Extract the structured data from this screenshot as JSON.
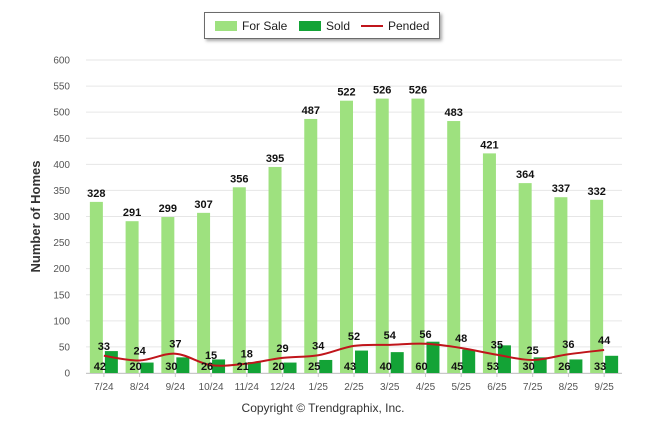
{
  "chart_data": {
    "type": "bar",
    "ylabel": "Number of Homes",
    "ylim": [
      0,
      600
    ],
    "yticks": [
      "0",
      "50",
      "100",
      "150",
      "200",
      "250",
      "300",
      "350",
      "400",
      "450",
      "500",
      "550",
      "600"
    ],
    "categories": [
      "7/24",
      "8/24",
      "9/24",
      "10/24",
      "11/24",
      "12/24",
      "1/25",
      "2/25",
      "3/25",
      "4/25",
      "5/25",
      "6/25",
      "7/25",
      "8/25",
      "9/25"
    ],
    "series": [
      {
        "name": "For Sale",
        "kind": "bar",
        "color": "#9ee17f",
        "values": [
          328,
          291,
          299,
          307,
          356,
          395,
          487,
          522,
          526,
          526,
          483,
          421,
          364,
          337,
          332
        ]
      },
      {
        "name": "Sold",
        "kind": "bar",
        "color": "#13a336",
        "values": [
          42,
          20,
          30,
          26,
          21,
          20,
          25,
          43,
          40,
          60,
          45,
          53,
          30,
          26,
          33
        ]
      },
      {
        "name": "Pended",
        "kind": "line",
        "color": "#c0151b",
        "values": [
          33,
          24,
          37,
          15,
          18,
          29,
          34,
          52,
          54,
          56,
          48,
          35,
          25,
          36,
          44
        ]
      }
    ],
    "legend_position": "top-center"
  },
  "footer": {
    "copyright": "Copyright © Trendgraphix, Inc."
  }
}
